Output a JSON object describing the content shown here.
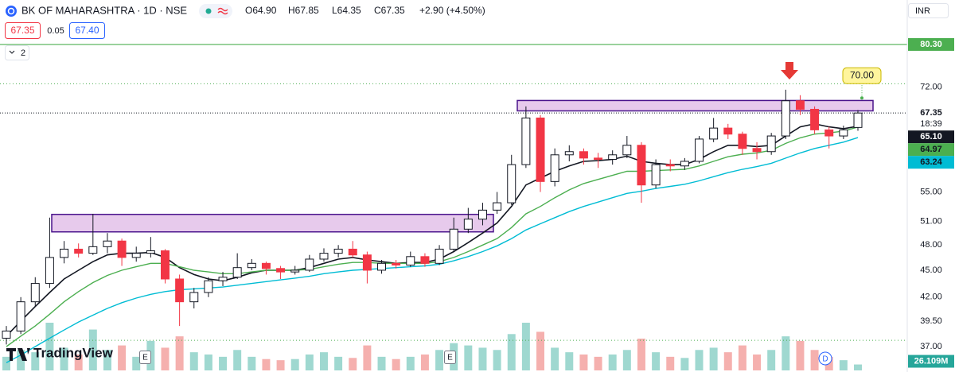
{
  "chart_data": {
    "type": "candlestick",
    "title": "BK OF MAHARASHTRA · 1D · NSE",
    "legend": [
      "O64.90",
      "H67.85",
      "L64.35",
      "C67.35",
      "+2.90 (+4.50%)"
    ],
    "bid": "67.35",
    "spread": "0.05",
    "ask": "67.40",
    "indicators_collapsed": "2",
    "currency": "INR",
    "brand": "TradingView",
    "events": [
      "E",
      "E",
      "D"
    ],
    "log_scale": true,
    "ylim": [
      34.66,
      90
    ],
    "yticks": [
      {
        "value": 72,
        "label": "72.00"
      },
      {
        "value": 55,
        "label": "55.00"
      },
      {
        "value": 51,
        "label": "51.00"
      },
      {
        "value": 48,
        "label": "48.00"
      },
      {
        "value": 45,
        "label": "45.00"
      },
      {
        "value": 42,
        "label": "42.00"
      },
      {
        "value": 39.5,
        "label": "39.50"
      },
      {
        "value": 37,
        "label": "37.00"
      }
    ],
    "open": [
      37.8,
      38.5,
      41.5,
      43.5,
      46.5,
      47.5,
      47.0,
      47.8,
      48.5,
      46.5,
      47.0,
      47.3,
      44.0,
      41.5,
      42.5,
      43.8,
      44.2,
      45.3,
      45.8,
      45.2,
      44.8,
      45.0,
      46.3,
      47.0,
      47.5,
      46.8,
      45.0,
      45.8,
      45.6,
      46.6,
      45.8,
      47.5,
      50.0,
      51.3,
      52.5,
      53.5,
      59.0,
      66.5,
      56.5,
      60.5,
      61.0,
      60.0,
      59.8,
      60.5,
      62.0,
      56.0,
      59.0,
      58.8,
      59.5,
      63.0,
      64.8,
      63.8,
      61.5,
      61.0,
      63.5,
      69.5,
      68.0,
      64.5,
      63.5,
      64.9
    ],
    "high": [
      39.0,
      42.0,
      44.2,
      51.5,
      48.5,
      48.2,
      52.0,
      49.5,
      48.8,
      47.8,
      49.0,
      47.5,
      44.5,
      43.0,
      44.2,
      44.8,
      47.0,
      46.3,
      46.0,
      45.5,
      45.5,
      46.8,
      47.6,
      48.0,
      48.5,
      47.2,
      46.2,
      46.2,
      47.2,
      47.0,
      48.0,
      51.5,
      52.8,
      53.5,
      55.0,
      60.5,
      68.5,
      67.0,
      61.5,
      62.0,
      61.5,
      60.8,
      61.2,
      63.5,
      62.5,
      59.8,
      59.8,
      60.0,
      63.5,
      66.5,
      65.5,
      64.2,
      62.5,
      64.0,
      71.5,
      70.5,
      68.5,
      65.0,
      65.2,
      67.85
    ],
    "low": [
      37.2,
      38.2,
      41.0,
      43.0,
      45.8,
      46.5,
      46.8,
      47.0,
      45.5,
      46.0,
      46.5,
      43.5,
      39.0,
      40.8,
      42.0,
      43.2,
      44.0,
      45.0,
      44.5,
      44.0,
      44.5,
      44.8,
      46.0,
      46.5,
      46.5,
      43.5,
      44.6,
      45.2,
      45.4,
      45.4,
      45.6,
      47.2,
      49.5,
      50.5,
      52.0,
      53.2,
      58.5,
      55.0,
      55.8,
      59.5,
      59.0,
      58.5,
      59.0,
      60.0,
      53.5,
      55.5,
      58.0,
      58.2,
      59.2,
      62.5,
      63.0,
      60.5,
      59.8,
      60.5,
      63.0,
      67.0,
      63.8,
      61.5,
      63.0,
      64.35
    ],
    "close": [
      38.5,
      41.5,
      43.5,
      46.5,
      47.5,
      47.0,
      47.8,
      48.5,
      46.5,
      47.0,
      47.3,
      44.0,
      41.5,
      42.5,
      43.8,
      44.2,
      45.3,
      45.8,
      45.2,
      44.8,
      45.0,
      46.3,
      47.0,
      47.5,
      46.8,
      45.0,
      45.8,
      45.6,
      46.6,
      45.8,
      47.5,
      50.0,
      51.3,
      52.5,
      53.5,
      59.0,
      66.5,
      56.5,
      60.5,
      61.0,
      60.0,
      59.8,
      60.5,
      62.0,
      56.0,
      59.0,
      58.8,
      59.5,
      63.0,
      64.8,
      63.8,
      61.5,
      61.0,
      63.5,
      69.5,
      68.0,
      64.5,
      63.5,
      64.5,
      67.35
    ],
    "up_color": "#ffffff",
    "down_color": "#f23645",
    "volume": [
      60,
      90,
      80,
      210,
      100,
      70,
      180,
      90,
      110,
      60,
      130,
      100,
      150,
      80,
      70,
      60,
      90,
      60,
      50,
      45,
      50,
      70,
      80,
      60,
      55,
      110,
      60,
      50,
      60,
      70,
      90,
      120,
      110,
      100,
      90,
      160,
      210,
      170,
      100,
      80,
      70,
      60,
      70,
      90,
      140,
      80,
      60,
      55,
      90,
      100,
      80,
      110,
      70,
      90,
      150,
      130,
      90,
      60,
      45,
      26.109
    ],
    "volume_lim": [
      0,
      280
    ],
    "volume_label": "26.109M",
    "volume_up_color": "#9fd8d0",
    "volume_down_color": "#f5b0ae",
    "series": [
      {
        "color": "#131722",
        "last_label": "65.10",
        "values": [
          38,
          39.5,
          41,
          42.5,
          44,
          45,
          46,
          46.8,
          47,
          47,
          47.1,
          46.5,
          45.3,
          44.5,
          44,
          43.8,
          44.2,
          44.7,
          45,
          45,
          45,
          45.3,
          45.8,
          46.3,
          46.5,
          46.2,
          46,
          45.8,
          45.9,
          45.9,
          46.3,
          47.2,
          48.3,
          49.5,
          50.8,
          53,
          56,
          57,
          58,
          58.8,
          59.5,
          59.6,
          59.8,
          60.3,
          59.5,
          59.2,
          59,
          59,
          59.8,
          61,
          62,
          62,
          61.8,
          62,
          63.5,
          65,
          65.5,
          65,
          64.7,
          65.1
        ]
      },
      {
        "color": "#4caf50",
        "last_label": "64.97",
        "values": [
          37,
          38,
          39,
          40.2,
          41.5,
          42.6,
          43.6,
          44.4,
          45,
          45.4,
          45.8,
          45.8,
          45.4,
          45,
          44.8,
          44.6,
          44.6,
          44.8,
          45,
          45,
          45,
          45.1,
          45.4,
          45.7,
          45.9,
          45.9,
          45.8,
          45.8,
          45.8,
          45.8,
          46,
          46.5,
          47.2,
          48,
          48.8,
          50.2,
          52,
          53,
          54.2,
          55.3,
          56.2,
          56.8,
          57.4,
          58,
          58,
          58.1,
          58.2,
          58.3,
          58.8,
          59.5,
          60.2,
          60.6,
          60.8,
          61.2,
          62.3,
          63.2,
          63.8,
          64,
          64.3,
          64.97
        ]
      },
      {
        "color": "#00bcd4",
        "last_label": "63.24",
        "values": [
          35.5,
          36.2,
          37,
          37.8,
          38.6,
          39.4,
          40.1,
          40.8,
          41.4,
          41.9,
          42.3,
          42.6,
          42.8,
          42.9,
          43,
          43.1,
          43.3,
          43.5,
          43.7,
          43.9,
          44.1,
          44.3,
          44.6,
          44.8,
          45,
          45.1,
          45.2,
          45.3,
          45.4,
          45.5,
          45.7,
          46.1,
          46.6,
          47.2,
          47.9,
          48.8,
          49.9,
          50.7,
          51.5,
          52.3,
          53,
          53.6,
          54.2,
          54.8,
          55.1,
          55.5,
          55.8,
          56.1,
          56.6,
          57.2,
          57.8,
          58.3,
          58.7,
          59.2,
          60,
          60.8,
          61.5,
          62,
          62.5,
          63.24
        ]
      }
    ],
    "last_price": {
      "value": 67.35,
      "label": "67.35"
    },
    "countdown": "18:39",
    "alert": {
      "value": 80.3,
      "label": "80.30",
      "color": "#4caf50"
    },
    "callout": {
      "value": 70,
      "label": "70.00"
    },
    "dotted_lines": [
      72.6,
      37.6
    ],
    "zones": [
      {
        "low": 49.65,
        "high": 51.93
      },
      {
        "low": 67.72,
        "high": 69.55
      }
    ]
  }
}
